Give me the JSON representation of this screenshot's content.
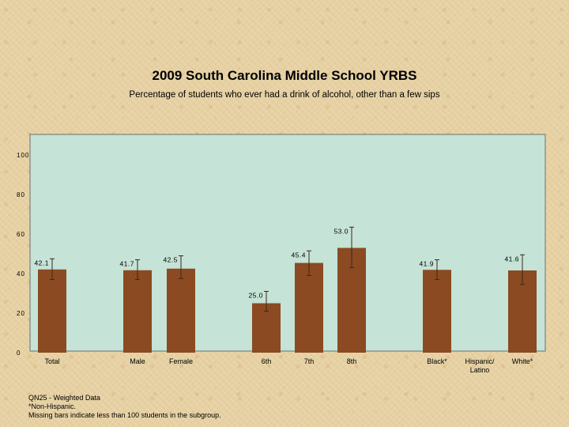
{
  "chart_data": {
    "type": "bar",
    "title": "2009 South Carolina Middle School YRBS",
    "subtitle": "Percentage of students who ever had a drink of alcohol, other than a few sips",
    "ylim": [
      0,
      100
    ],
    "yticks": [
      "0",
      "20",
      "40",
      "60",
      "80",
      "100"
    ],
    "grid": false,
    "categories": [
      "Total",
      "Male",
      "Female",
      "6th",
      "7th",
      "8th",
      "Black*",
      "Hispanic/ Latino",
      "White*"
    ],
    "values": [
      42.1,
      41.7,
      42.5,
      25.0,
      45.4,
      53.0,
      41.9,
      null,
      41.6
    ],
    "value_labels": [
      "42.1",
      "41.7",
      "42.5",
      "25.0",
      "45.4",
      "53.0",
      "41.9",
      "",
      "41.6"
    ],
    "error_low": [
      37.0,
      37.0,
      37.5,
      21.0,
      39.0,
      43.0,
      37.0,
      null,
      34.5
    ],
    "error_high": [
      47.5,
      47.0,
      49.0,
      31.0,
      51.5,
      63.5,
      47.0,
      null,
      49.5
    ],
    "bar_color": "#8b4a22",
    "plot_background": "#c5e3d6"
  },
  "footnotes": [
    "QN25 - Weighted Data",
    "*Non-Hispanic.",
    "Missing bars indicate less than 100 students in the subgroup."
  ]
}
